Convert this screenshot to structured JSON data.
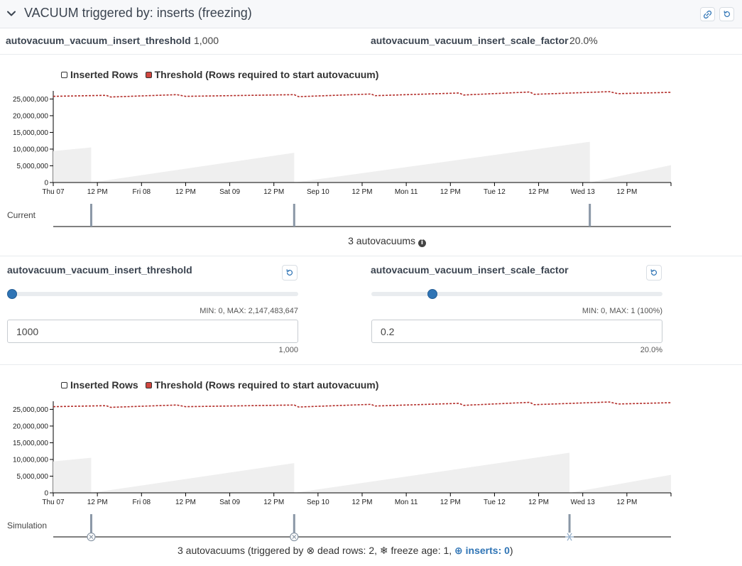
{
  "header": {
    "title": "VACUUM triggered by: inserts (freezing)"
  },
  "settings": [
    {
      "name": "autovacuum_vacuum_insert_threshold",
      "value": "1,000"
    },
    {
      "name": "autovacuum_vacuum_insert_scale_factor",
      "value": "20.0%"
    }
  ],
  "legend": {
    "inserted": "Inserted Rows",
    "threshold": "Threshold (Rows required to start autovacuum)"
  },
  "colors": {
    "threshold": "#b22b27",
    "inserted_fill": "#efefef",
    "accent": "#2f74b5"
  },
  "current": {
    "row_label": "Current",
    "caption": "3 autovacuums"
  },
  "controls": [
    {
      "name": "autovacuum_vacuum_insert_threshold",
      "minmax": "MIN: 0, MAX: 2,147,483,647",
      "input_value": "1000",
      "formatted": "1,000",
      "slider_fraction": 0.0
    },
    {
      "name": "autovacuum_vacuum_insert_scale_factor",
      "minmax": "MIN: 0, MAX: 1 (100%)",
      "input_value": "0.2",
      "formatted": "20.0%",
      "slider_fraction": 0.2
    }
  ],
  "simulation": {
    "row_label": "Simulation",
    "caption_prefix": "3 autovacuums (triggered by",
    "dead_rows": "dead rows: 2,",
    "freeze_age": "freeze age: 1,",
    "inserts": "inserts: 0",
    "caption_suffix": ")"
  },
  "chart_data": [
    {
      "type": "area",
      "x_ticks": [
        "Thu 07",
        "12 PM",
        "Fri 08",
        "12 PM",
        "Sat 09",
        "12 PM",
        "Sep 10",
        "12 PM",
        "Mon 11",
        "12 PM",
        "Tue 12",
        "12 PM",
        "Wed 13",
        "12 PM"
      ],
      "y_ticks": [
        "25,000,000",
        "20,000,000",
        "15,000,000",
        "10,000,000",
        "5,000,000",
        "0"
      ],
      "ylim": [
        0,
        27000000
      ],
      "series": [
        {
          "name": "Inserted Rows",
          "segments": [
            [
              [
                0,
                9400000
              ],
              [
                0.43,
                10500000
              ]
            ],
            [
              [
                0.43,
                0
              ],
              [
                2.73,
                8900000
              ]
            ],
            [
              [
                2.73,
                0
              ],
              [
                6.08,
                12200000
              ]
            ],
            [
              [
                6.08,
                0
              ],
              [
                7.0,
                5200000
              ]
            ]
          ]
        },
        {
          "name": "Threshold (Rows required to start autovacuum)",
          "values": [
            [
              0,
              25800000
            ],
            [
              0.6,
              26100000
            ],
            [
              0.65,
              25600000
            ],
            [
              1.4,
              26300000
            ],
            [
              1.5,
              25800000
            ],
            [
              2.73,
              26300000
            ],
            [
              2.78,
              25700000
            ],
            [
              3.6,
              26500000
            ],
            [
              3.65,
              26000000
            ],
            [
              4.6,
              26800000
            ],
            [
              4.65,
              26200000
            ],
            [
              5.4,
              27100000
            ],
            [
              5.45,
              26400000
            ],
            [
              6.3,
              27200000
            ],
            [
              6.4,
              26600000
            ],
            [
              7.0,
              27000000
            ]
          ]
        }
      ],
      "events": [
        0.43,
        2.73,
        6.08
      ]
    },
    {
      "type": "area",
      "x_ticks": [
        "Thu 07",
        "12 PM",
        "Fri 08",
        "12 PM",
        "Sat 09",
        "12 PM",
        "Sep 10",
        "12 PM",
        "Mon 11",
        "12 PM",
        "Tue 12",
        "12 PM",
        "Wed 13",
        "12 PM"
      ],
      "y_ticks": [
        "25,000,000",
        "20,000,000",
        "15,000,000",
        "10,000,000",
        "5,000,000",
        "0"
      ],
      "ylim": [
        0,
        27000000
      ],
      "series": [
        {
          "name": "Inserted Rows",
          "segments": [
            [
              [
                0,
                9400000
              ],
              [
                0.43,
                10500000
              ]
            ],
            [
              [
                0.43,
                0
              ],
              [
                2.73,
                8900000
              ]
            ],
            [
              [
                2.73,
                0
              ],
              [
                5.85,
                12000000
              ]
            ],
            [
              [
                5.85,
                0
              ],
              [
                7.0,
                5400000
              ]
            ]
          ]
        },
        {
          "name": "Threshold (Rows required to start autovacuum)",
          "values": [
            [
              0,
              25800000
            ],
            [
              0.6,
              26100000
            ],
            [
              0.65,
              25600000
            ],
            [
              1.4,
              26300000
            ],
            [
              1.5,
              25800000
            ],
            [
              2.73,
              26300000
            ],
            [
              2.78,
              25700000
            ],
            [
              3.6,
              26500000
            ],
            [
              3.65,
              26000000
            ],
            [
              4.6,
              26800000
            ],
            [
              4.65,
              26200000
            ],
            [
              5.4,
              27100000
            ],
            [
              5.45,
              26400000
            ],
            [
              6.3,
              27200000
            ],
            [
              6.4,
              26600000
            ],
            [
              7.0,
              27000000
            ]
          ]
        }
      ],
      "events": [
        {
          "x": 0.43,
          "reason": "dead rows"
        },
        {
          "x": 2.73,
          "reason": "dead rows"
        },
        {
          "x": 5.85,
          "reason": "freeze age"
        }
      ]
    }
  ]
}
